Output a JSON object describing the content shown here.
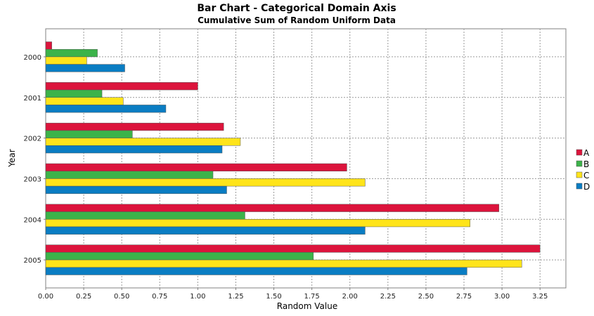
{
  "chart_data": {
    "type": "bar",
    "orientation": "horizontal",
    "title": "Bar Chart - Categorical Domain Axis",
    "subtitle": "Cumulative Sum of Random Uniform Data",
    "xlabel": "Random Value",
    "ylabel": "Year",
    "categories": [
      "2000",
      "2001",
      "2002",
      "2003",
      "2004",
      "2005"
    ],
    "xlim": [
      0,
      3.42
    ],
    "xticks": [
      "0.00",
      "0.25",
      "0.50",
      "0.75",
      "1.00",
      "1.25",
      "1.50",
      "1.75",
      "2.00",
      "2.25",
      "2.50",
      "2.75",
      "3.00",
      "3.25"
    ],
    "grid": true,
    "legend_position": "right",
    "series": [
      {
        "name": "A",
        "color": "#dc143c",
        "values": [
          0.04,
          1.0,
          1.17,
          1.98,
          2.98,
          3.25
        ]
      },
      {
        "name": "B",
        "color": "#3cb34a",
        "values": [
          0.34,
          0.37,
          0.57,
          1.1,
          1.31,
          1.76
        ]
      },
      {
        "name": "C",
        "color": "#ffe41a",
        "values": [
          0.27,
          0.51,
          1.28,
          2.1,
          2.79,
          3.13
        ]
      },
      {
        "name": "D",
        "color": "#0a7dc3",
        "values": [
          0.52,
          0.79,
          1.16,
          1.19,
          2.1,
          2.77
        ]
      }
    ]
  }
}
